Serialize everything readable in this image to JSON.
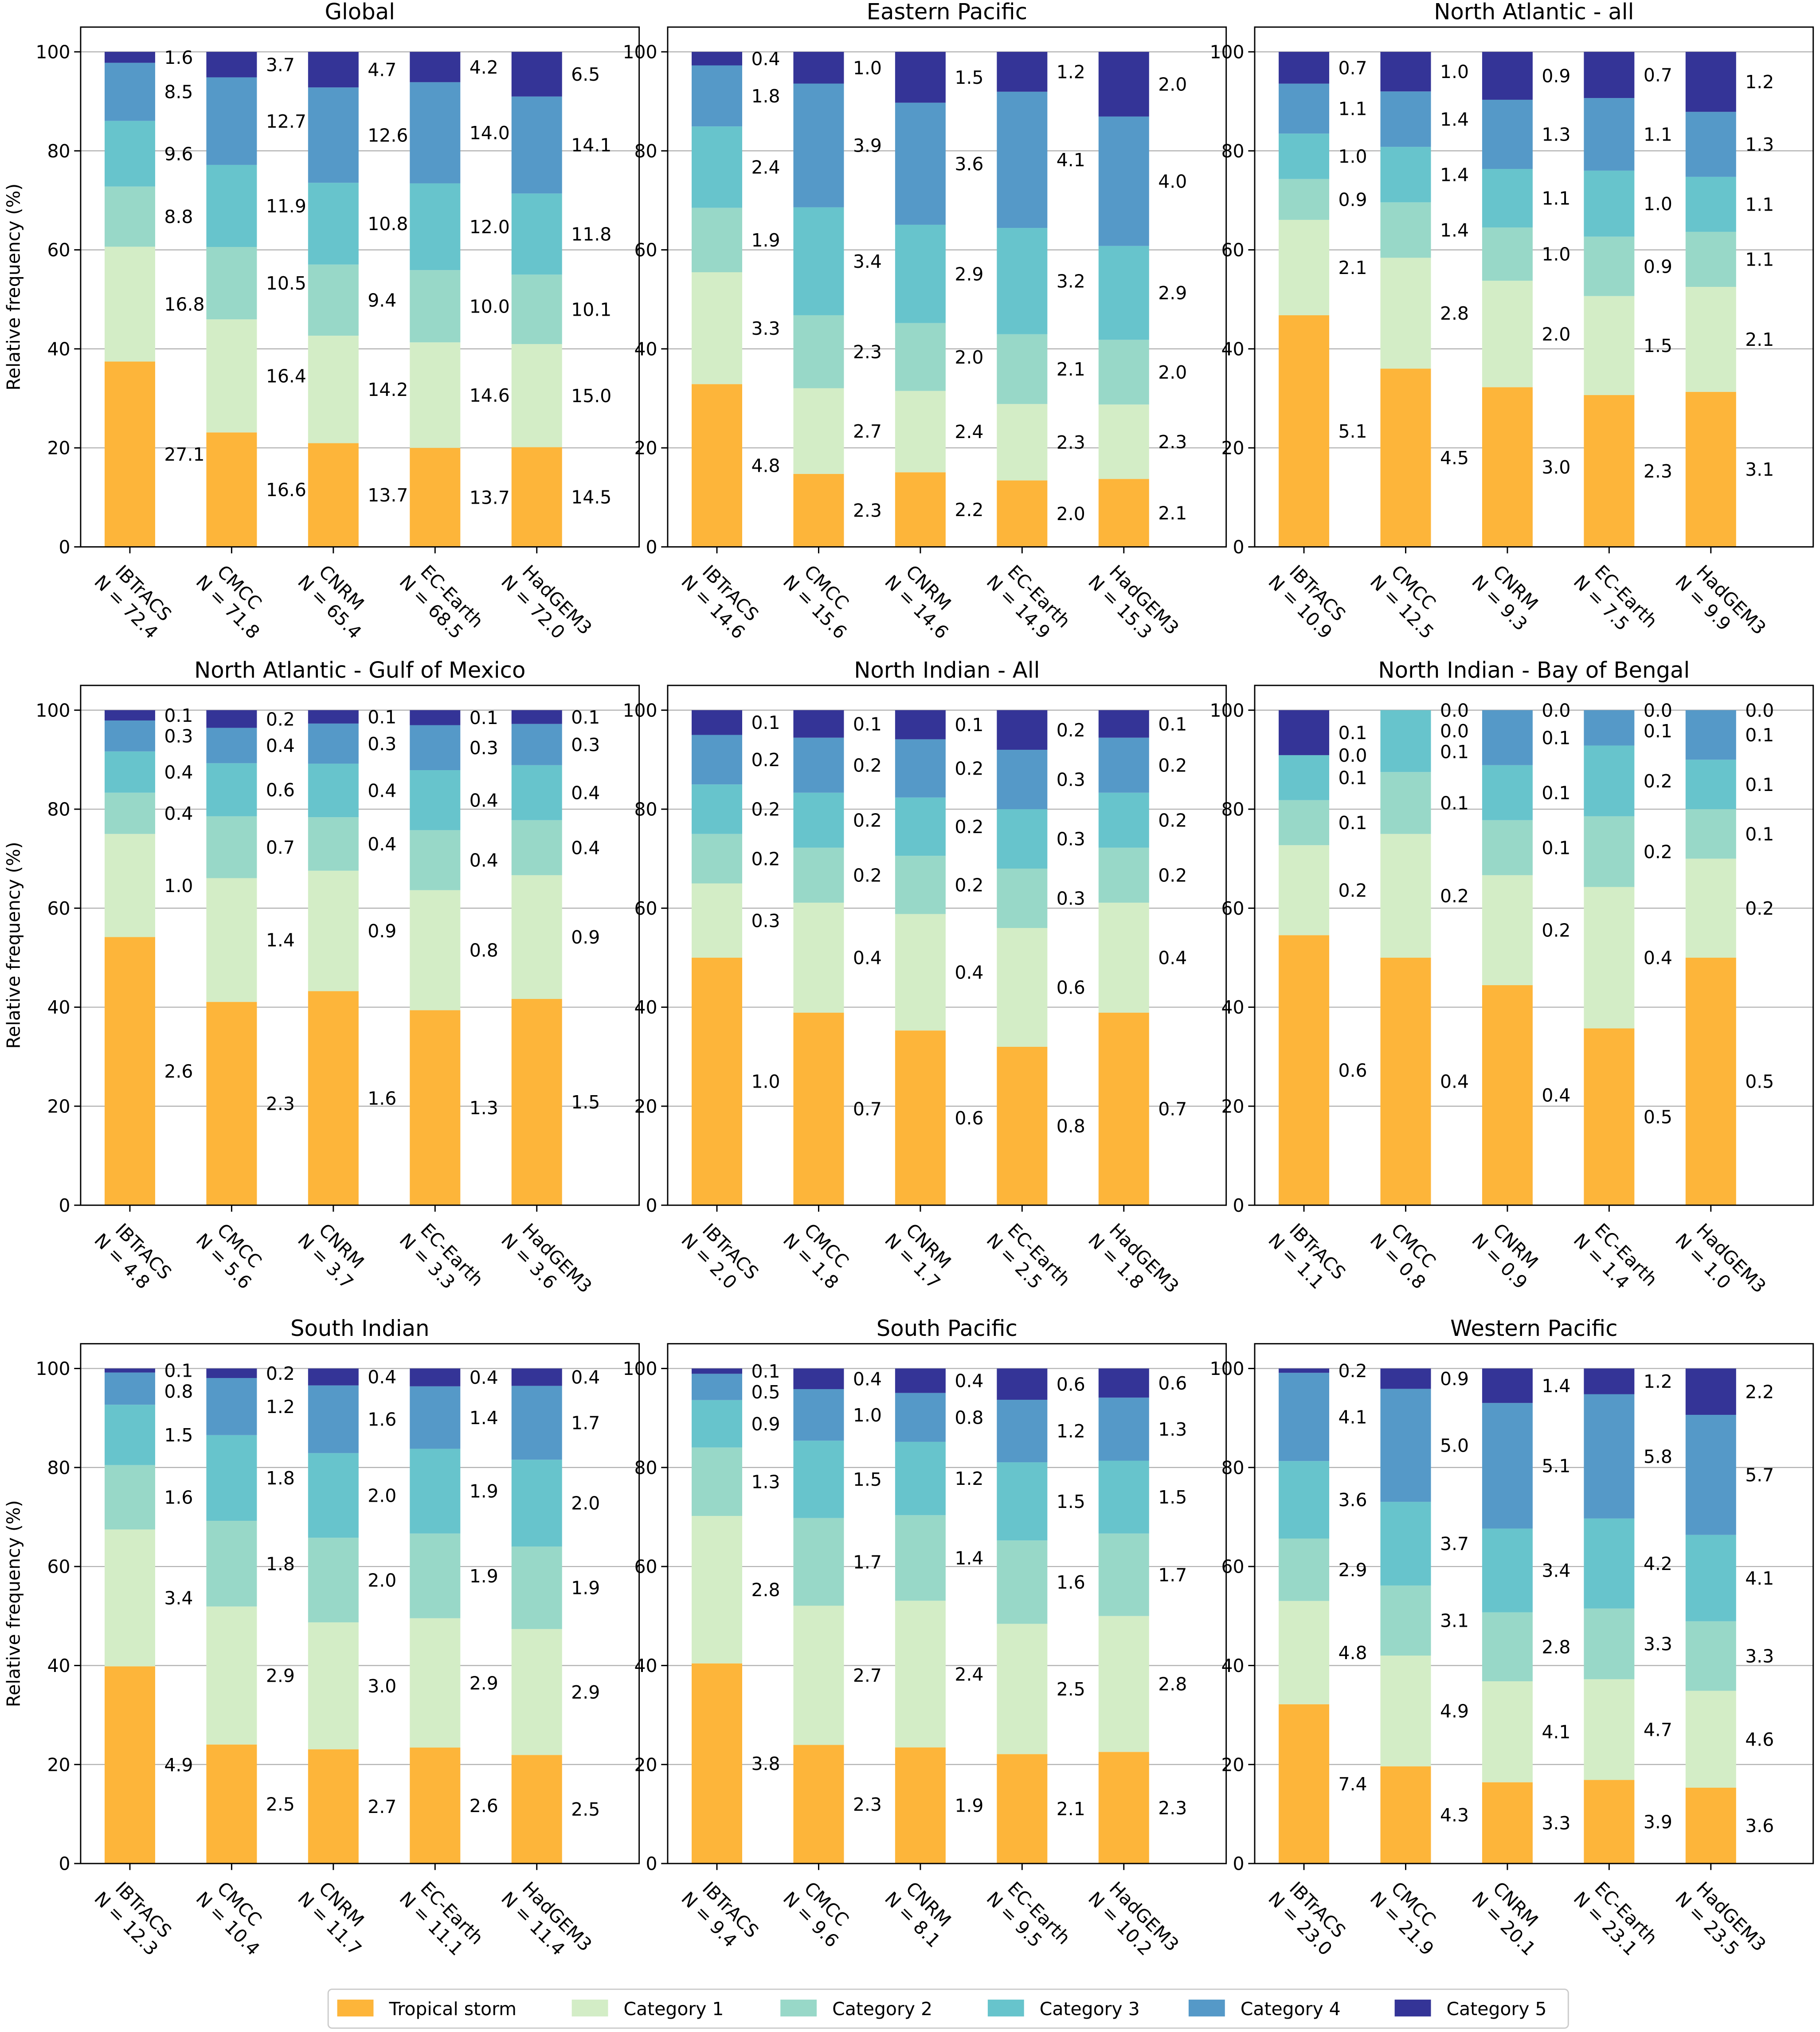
{
  "chart_data": {
    "type": "bar",
    "stacked": true,
    "ylabel": "Relative frequency (%)",
    "ylim": [
      0,
      105
    ],
    "yticks": [
      0,
      20,
      40,
      60,
      80,
      100
    ],
    "grid": true,
    "legend_placement": "bottom-center",
    "categories": [
      "IBTrACS",
      "CMCC",
      "CNRM",
      "EC-Earth",
      "HadGEM3"
    ],
    "series_names": [
      "Tropical storm",
      "Category 1",
      "Category 2",
      "Category 3",
      "Category 4",
      "Category 5"
    ],
    "colors": [
      "#fdb53a",
      "#d3edc6",
      "#98d8c8",
      "#67c4cc",
      "#5599c8",
      "#343497"
    ],
    "panels": [
      {
        "title": "Global",
        "N": [
          "72.4",
          "71.8",
          "65.4",
          "68.5",
          "72.0"
        ],
        "values": [
          [
            27.1,
            16.8,
            8.8,
            9.6,
            8.5,
            1.6
          ],
          [
            16.6,
            16.4,
            10.5,
            11.9,
            12.7,
            3.7
          ],
          [
            13.7,
            14.2,
            9.4,
            10.8,
            12.6,
            4.7
          ],
          [
            13.7,
            14.6,
            10.0,
            12.0,
            14.0,
            4.2
          ],
          [
            14.5,
            15.0,
            10.1,
            11.8,
            14.1,
            6.5
          ]
        ]
      },
      {
        "title": "Eastern Pacific",
        "N": [
          "14.6",
          "15.6",
          "14.6",
          "14.9",
          "15.3"
        ],
        "values": [
          [
            4.8,
            3.3,
            1.9,
            2.4,
            1.8,
            0.4
          ],
          [
            2.3,
            2.7,
            2.3,
            3.4,
            3.9,
            1.0
          ],
          [
            2.2,
            2.4,
            2.0,
            2.9,
            3.6,
            1.5
          ],
          [
            2.0,
            2.3,
            2.1,
            3.2,
            4.1,
            1.2
          ],
          [
            2.1,
            2.3,
            2.0,
            2.9,
            4.0,
            2.0
          ]
        ]
      },
      {
        "title": "North Atlantic - all",
        "N": [
          "10.9",
          "12.5",
          "9.3",
          "7.5",
          "9.9"
        ],
        "values": [
          [
            5.1,
            2.1,
            0.9,
            1.0,
            1.1,
            0.7
          ],
          [
            4.5,
            2.8,
            1.4,
            1.4,
            1.4,
            1.0
          ],
          [
            3.0,
            2.0,
            1.0,
            1.1,
            1.3,
            0.9
          ],
          [
            2.3,
            1.5,
            0.9,
            1.0,
            1.1,
            0.7
          ],
          [
            3.1,
            2.1,
            1.1,
            1.1,
            1.3,
            1.2
          ]
        ]
      },
      {
        "title": "North Atlantic - Gulf of Mexico",
        "N": [
          "4.8",
          "5.6",
          "3.7",
          "3.3",
          "3.6"
        ],
        "values": [
          [
            2.6,
            1.0,
            0.4,
            0.4,
            0.3,
            0.1
          ],
          [
            2.3,
            1.4,
            0.7,
            0.6,
            0.4,
            0.2
          ],
          [
            1.6,
            0.9,
            0.4,
            0.4,
            0.3,
            0.1
          ],
          [
            1.3,
            0.8,
            0.4,
            0.4,
            0.3,
            0.1
          ],
          [
            1.5,
            0.9,
            0.4,
            0.4,
            0.3,
            0.1
          ]
        ]
      },
      {
        "title": "North Indian - All",
        "N": [
          "2.0",
          "1.8",
          "1.7",
          "2.5",
          "1.8"
        ],
        "values": [
          [
            1.0,
            0.3,
            0.2,
            0.2,
            0.2,
            0.1
          ],
          [
            0.7,
            0.4,
            0.2,
            0.2,
            0.2,
            0.1
          ],
          [
            0.6,
            0.4,
            0.2,
            0.2,
            0.2,
            0.1
          ],
          [
            0.8,
            0.6,
            0.3,
            0.3,
            0.3,
            0.2
          ],
          [
            0.7,
            0.4,
            0.2,
            0.2,
            0.2,
            0.1
          ]
        ]
      },
      {
        "title": "North Indian - Bay of Bengal",
        "N": [
          "1.1",
          "0.8",
          "0.9",
          "1.4",
          "1.0"
        ],
        "values": [
          [
            0.6,
            0.2,
            0.1,
            0.1,
            0.0,
            0.1
          ],
          [
            0.4,
            0.2,
            0.1,
            0.1,
            0.0,
            0.0
          ],
          [
            0.4,
            0.2,
            0.1,
            0.1,
            0.1,
            0.0
          ],
          [
            0.5,
            0.4,
            0.2,
            0.2,
            0.1,
            0.0
          ],
          [
            0.5,
            0.2,
            0.1,
            0.1,
            0.1,
            0.0
          ]
        ]
      },
      {
        "title": "South Indian",
        "N": [
          "12.3",
          "10.4",
          "11.7",
          "11.1",
          "11.4"
        ],
        "values": [
          [
            4.9,
            3.4,
            1.6,
            1.5,
            0.8,
            0.1
          ],
          [
            2.5,
            2.9,
            1.8,
            1.8,
            1.2,
            0.2
          ],
          [
            2.7,
            3.0,
            2.0,
            2.0,
            1.6,
            0.4
          ],
          [
            2.6,
            2.9,
            1.9,
            1.9,
            1.4,
            0.4
          ],
          [
            2.5,
            2.9,
            1.9,
            2.0,
            1.7,
            0.4
          ]
        ]
      },
      {
        "title": "South Pacific",
        "N": [
          "9.4",
          "9.6",
          "8.1",
          "9.5",
          "10.2"
        ],
        "values": [
          [
            3.8,
            2.8,
            1.3,
            0.9,
            0.5,
            0.1
          ],
          [
            2.3,
            2.7,
            1.7,
            1.5,
            1.0,
            0.4
          ],
          [
            1.9,
            2.4,
            1.4,
            1.2,
            0.8,
            0.4
          ],
          [
            2.1,
            2.5,
            1.6,
            1.5,
            1.2,
            0.6
          ],
          [
            2.3,
            2.8,
            1.7,
            1.5,
            1.3,
            0.6
          ]
        ]
      },
      {
        "title": "Western Pacific",
        "N": [
          "23.0",
          "21.9",
          "20.1",
          "23.1",
          "23.5"
        ],
        "values": [
          [
            7.4,
            4.8,
            2.9,
            3.6,
            4.1,
            0.2
          ],
          [
            4.3,
            4.9,
            3.1,
            3.7,
            5.0,
            0.9
          ],
          [
            3.3,
            4.1,
            2.8,
            3.4,
            5.1,
            1.4
          ],
          [
            3.9,
            4.7,
            3.3,
            4.2,
            5.8,
            1.2
          ],
          [
            3.6,
            4.6,
            3.3,
            4.1,
            5.7,
            2.2
          ]
        ]
      }
    ]
  }
}
